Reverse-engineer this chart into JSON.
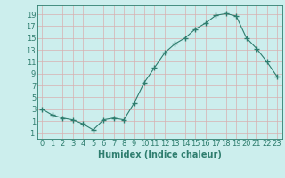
{
  "x": [
    0,
    1,
    2,
    3,
    4,
    5,
    6,
    7,
    8,
    9,
    10,
    11,
    12,
    13,
    14,
    15,
    16,
    17,
    18,
    19,
    20,
    21,
    22,
    23
  ],
  "y": [
    3,
    2,
    1.5,
    1.2,
    0.5,
    -0.5,
    1.2,
    1.5,
    1.2,
    4,
    7.5,
    10,
    12.5,
    14,
    15,
    16.5,
    17.5,
    18.8,
    19.1,
    18.7,
    15,
    13.2,
    11,
    8.5
  ],
  "line_color": "#2e7d6e",
  "marker": "+",
  "marker_size": 4,
  "bg_color": "#cceeed",
  "grid_color": "#b0d8d8",
  "tick_color": "#2e7d6e",
  "label_color": "#2e7d6e",
  "xlabel": "Humidex (Indice chaleur)",
  "xlim": [
    -0.5,
    23.5
  ],
  "ylim": [
    -2,
    20.5
  ],
  "yticks": [
    -1,
    1,
    3,
    5,
    7,
    9,
    11,
    13,
    15,
    17,
    19
  ],
  "xticks": [
    0,
    1,
    2,
    3,
    4,
    5,
    6,
    7,
    8,
    9,
    10,
    11,
    12,
    13,
    14,
    15,
    16,
    17,
    18,
    19,
    20,
    21,
    22,
    23
  ],
  "font_size": 6,
  "xlabel_fontsize": 7
}
